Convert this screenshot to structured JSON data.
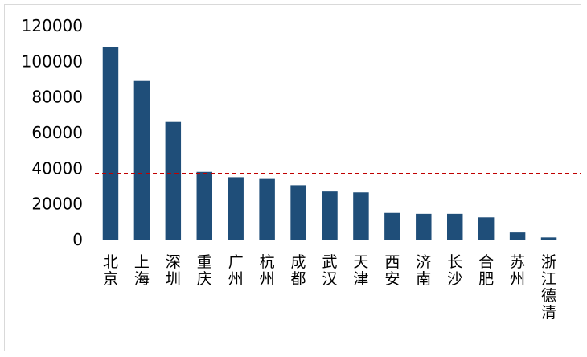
{
  "chart_data": {
    "type": "bar",
    "title": "",
    "xlabel": "",
    "ylabel": "",
    "categories": [
      "北京",
      "上海",
      "深圳",
      "重庆",
      "广州",
      "杭州",
      "成都",
      "武汉",
      "天津",
      "西安",
      "济南",
      "长沙",
      "合肥",
      "苏州",
      "浙江德清"
    ],
    "values": [
      108000,
      89000,
      66000,
      38000,
      35000,
      34000,
      30500,
      27000,
      26500,
      15000,
      14500,
      14500,
      12500,
      4000,
      1200
    ],
    "ylim": [
      0,
      120000
    ],
    "yticks": [
      "0",
      "20000",
      "40000",
      "60000",
      "80000",
      "100000",
      "120000"
    ],
    "reference_line": {
      "value": 37000,
      "style": "dashed"
    },
    "grid": false,
    "legend": "none",
    "colors": {
      "bar": "#1f4e79",
      "reference_line": "#c00000",
      "axis": "#bfbfbf"
    }
  }
}
